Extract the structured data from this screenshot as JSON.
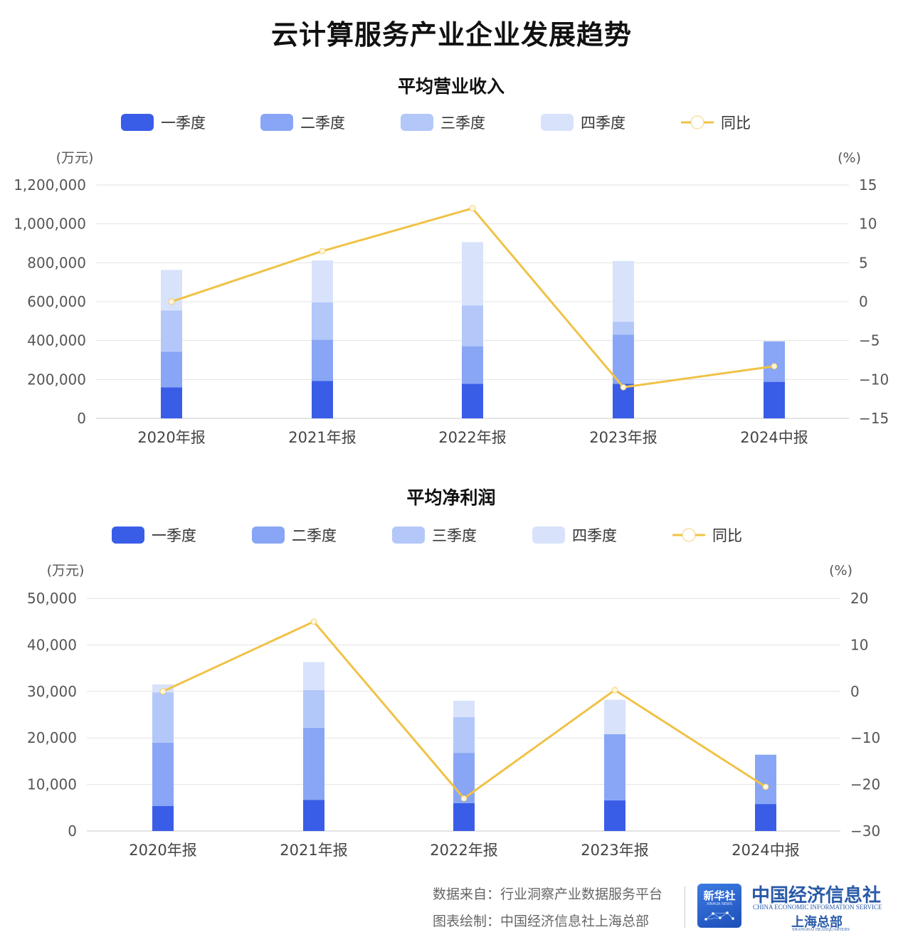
{
  "title": "云计算服务产业企业发展趋势",
  "colors": {
    "q1": "#3a5de8",
    "q2": "#88a6f5",
    "q3": "#b3c7f9",
    "q4": "#d8e2fb",
    "yoy": "#f0c246"
  },
  "legend": {
    "q1": "一季度",
    "q2": "二季度",
    "q3": "三季度",
    "q4": "四季度",
    "yoy": "同比"
  },
  "chart_data": [
    {
      "type": "bar",
      "stacked": true,
      "title": "平均营业收入",
      "ylabel": "(万元)",
      "y2label": "(%)",
      "categories": [
        "2020年报",
        "2021年报",
        "2022年报",
        "2023年报",
        "2024中报"
      ],
      "ylim": [
        0,
        1200000
      ],
      "yticks": [
        0,
        200000,
        400000,
        600000,
        800000,
        1000000,
        1200000
      ],
      "ytick_labels": [
        "0",
        "200,000",
        "400,000",
        "600,000",
        "800,000",
        "1,000,000",
        "1,200,000"
      ],
      "y2lim": [
        -15,
        15
      ],
      "y2ticks": [
        -15,
        -10,
        -5,
        0,
        5,
        10,
        15
      ],
      "y2tick_labels": [
        "−15",
        "−10",
        "−5",
        "0",
        "5",
        "10",
        "15"
      ],
      "grid": true,
      "legend_position": "top",
      "series": [
        {
          "name": "一季度",
          "values": [
            160000,
            192000,
            178000,
            178000,
            188000
          ]
        },
        {
          "name": "二季度",
          "values": [
            182000,
            212000,
            193000,
            252000,
            208000
          ]
        },
        {
          "name": "三季度",
          "values": [
            213000,
            193000,
            210000,
            67000,
            0
          ]
        },
        {
          "name": "四季度",
          "values": [
            208000,
            215000,
            325000,
            312000,
            0
          ]
        }
      ],
      "line": {
        "name": "同比",
        "axis": "right",
        "values": [
          0,
          6.5,
          12,
          -11,
          -8.3
        ]
      }
    },
    {
      "type": "bar",
      "stacked": true,
      "title": "平均净利润",
      "ylabel": "(万元)",
      "y2label": "(%)",
      "categories": [
        "2020年报",
        "2021年报",
        "2022年报",
        "2023年报",
        "2024中报"
      ],
      "ylim": [
        0,
        50000
      ],
      "yticks": [
        0,
        10000,
        20000,
        30000,
        40000,
        50000
      ],
      "ytick_labels": [
        "0",
        "10,000",
        "20,000",
        "30,000",
        "40,000",
        "50,000"
      ],
      "y2lim": [
        -30,
        20
      ],
      "y2ticks": [
        -30,
        -20,
        -10,
        0,
        10,
        20
      ],
      "y2tick_labels": [
        "−30",
        "−20",
        "−10",
        "0",
        "10",
        "20"
      ],
      "grid": true,
      "legend_position": "top",
      "series": [
        {
          "name": "一季度",
          "values": [
            5400,
            6700,
            6000,
            6600,
            5800
          ]
        },
        {
          "name": "二季度",
          "values": [
            13600,
            15500,
            10800,
            14200,
            10600
          ]
        },
        {
          "name": "三季度",
          "values": [
            10800,
            8100,
            7700,
            0,
            0
          ]
        },
        {
          "name": "四季度",
          "values": [
            1700,
            6000,
            3500,
            7400,
            0
          ]
        }
      ],
      "line": {
        "name": "同比",
        "axis": "right",
        "values": [
          0,
          15,
          -23,
          0.3,
          -20.5
        ]
      }
    }
  ],
  "footer": {
    "source": "数据来自：行业洞察产业数据服务平台",
    "drawn_by": "图表绘制：中国经济信息社上海总部",
    "xinhua_cn": "新华社",
    "xinhua_en": "XINHUA NEWS",
    "cei_cn": "中国经济信息社",
    "cei_en": "CHINA ECONOMIC INFORMATION SERVICE",
    "cei_sh_cn": "上海总部",
    "cei_sh_en": "SHANGHAI HEADQUARTERS"
  }
}
